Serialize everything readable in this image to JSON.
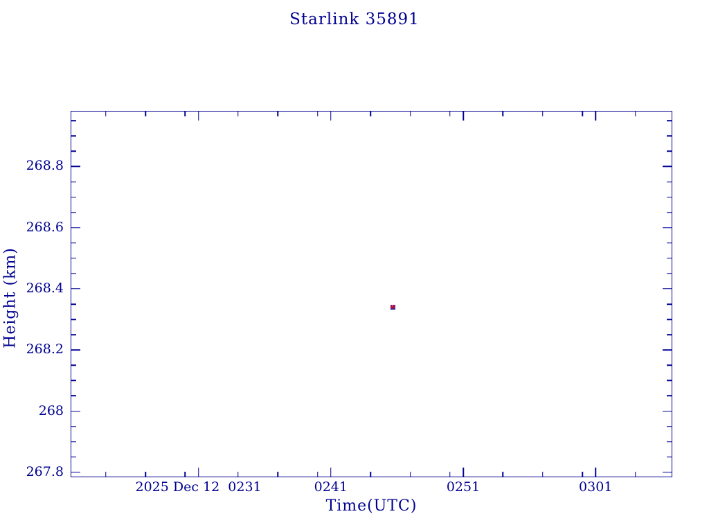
{
  "page": {
    "background": "#ffffff",
    "accent": "#000090"
  },
  "chart_data": {
    "type": "scatter",
    "title": "Starlink 35891",
    "xlabel": "Time(UTC)",
    "ylabel": "Height (km)",
    "grid": false,
    "legend": false,
    "x_axis": {
      "unit": "minutes after 2025-12-12 00:00 UTC",
      "range": [
        141.4,
        186.74
      ],
      "major_ticks": [
        {
          "value": 151,
          "label": "2025 Dec 12  0231"
        },
        {
          "value": 161,
          "label": "0241"
        },
        {
          "value": 171,
          "label": "0251"
        },
        {
          "value": 181,
          "label": "0301"
        }
      ],
      "minor_ticks": [
        144,
        147,
        150,
        154,
        157,
        160,
        164,
        167,
        170,
        174,
        177,
        180,
        184
      ]
    },
    "y_axis": {
      "unit": "km",
      "range": [
        267.786,
        268.98
      ],
      "major_ticks": [
        {
          "value": 267.8,
          "label": "267.8"
        },
        {
          "value": 268.0,
          "label": "268"
        },
        {
          "value": 268.2,
          "label": "268.2"
        },
        {
          "value": 268.4,
          "label": "268.4"
        },
        {
          "value": 268.6,
          "label": "268.6"
        },
        {
          "value": 268.8,
          "label": "268.8"
        }
      ],
      "minor_ticks": [
        267.85,
        267.9,
        267.95,
        268.05,
        268.1,
        268.15,
        268.25,
        268.3,
        268.35,
        268.45,
        268.5,
        268.55,
        268.65,
        268.7,
        268.75,
        268.85,
        268.9,
        268.95
      ]
    },
    "series": [
      {
        "name": "height",
        "marker": "square",
        "colors": {
          "outer": "#3a2a9a",
          "inner": "#c4103a",
          "speck": "#ffffff"
        },
        "points": [
          {
            "x": 165.7,
            "y": 268.34
          }
        ]
      }
    ]
  }
}
